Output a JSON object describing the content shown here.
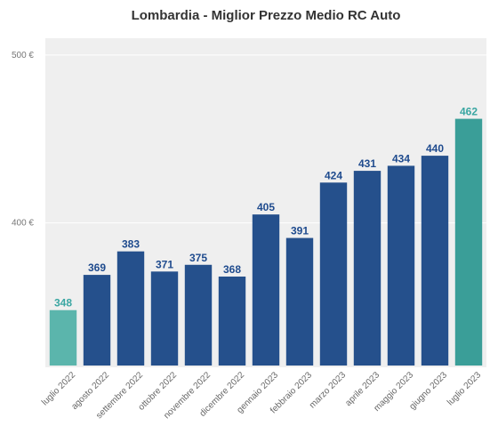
{
  "chart_data": {
    "type": "bar",
    "title": "Lombardia - Miglior Prezzo Medio RC Auto",
    "xlabel": "",
    "ylabel": "",
    "categories": [
      "luglio 2022",
      "agosto 2022",
      "settembre 2022",
      "ottobre 2022",
      "novembre 2022",
      "dicembre 2022",
      "gennaio 2023",
      "febbraio 2023",
      "marzo 2023",
      "aprile 2023",
      "maggio 2023",
      "giugno 2023",
      "luglio 2023"
    ],
    "values": [
      348,
      369,
      383,
      371,
      375,
      368,
      405,
      391,
      424,
      431,
      434,
      440,
      462
    ],
    "labels": [
      "348",
      "369",
      "383",
      "371",
      "375",
      "368",
      "405",
      "391",
      "424",
      "431",
      "434",
      "440",
      "462"
    ],
    "ylim": [
      315,
      510
    ],
    "yticks": [
      400,
      500
    ],
    "ytick_labels": [
      "400 €",
      "500 €"
    ],
    "grid": true,
    "colors": {
      "bar": "#25508c",
      "highlight": "#3a9e98",
      "first": "#5bb5ac",
      "label": "#1f4b8e",
      "highlight_label": "#3aa6a2",
      "plot_bg": "#efefef",
      "grid": "#ffffff"
    }
  }
}
